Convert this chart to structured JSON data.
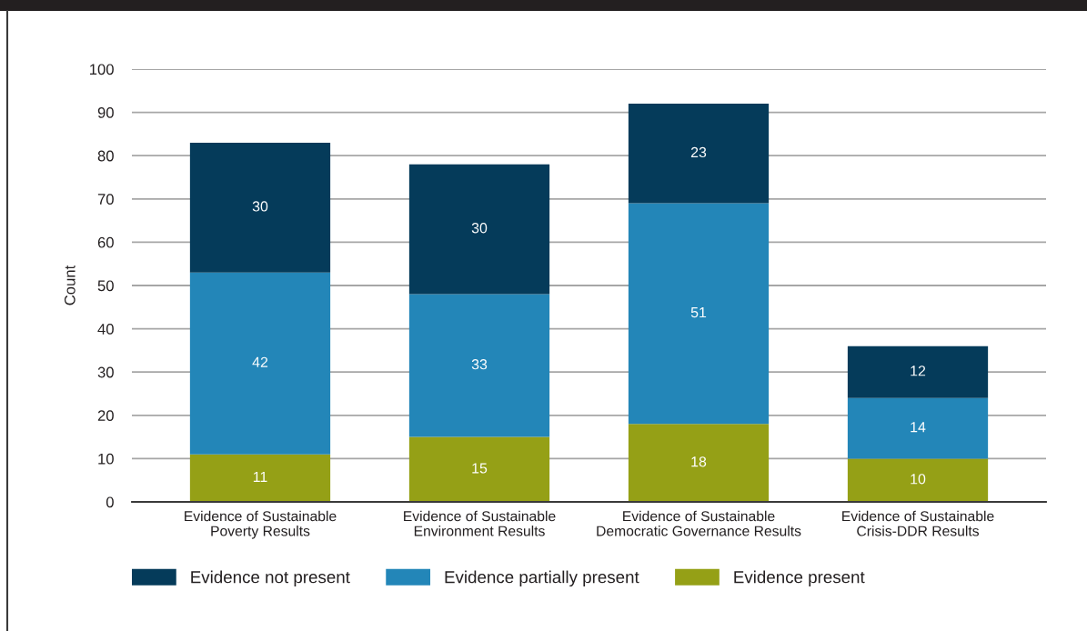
{
  "chart_data": {
    "type": "bar",
    "stacked": true,
    "ylabel": "Count",
    "categories": [
      "Evidence of Sustainable\nPoverty Results",
      "Evidence of Sustainable\nEnvironment Results",
      "Evidence of Sustainable\nDemocratic Governance Results",
      "Evidence of Sustainable\nCrisis-DDR Results"
    ],
    "series": [
      {
        "name": "Evidence present",
        "color": "#95a016",
        "values": [
          11,
          15,
          18,
          10
        ]
      },
      {
        "name": "Evidence partially present",
        "color": "#2386b8",
        "values": [
          42,
          33,
          51,
          14
        ]
      },
      {
        "name": "Evidence not present",
        "color": "#053b5a",
        "values": [
          30,
          30,
          23,
          12
        ]
      }
    ],
    "ylim": [
      0,
      100
    ],
    "yticks": [
      0,
      10,
      20,
      30,
      40,
      50,
      60,
      70,
      80,
      90,
      100
    ],
    "grid": "y",
    "legend": "bottom",
    "data_labels": true
  }
}
